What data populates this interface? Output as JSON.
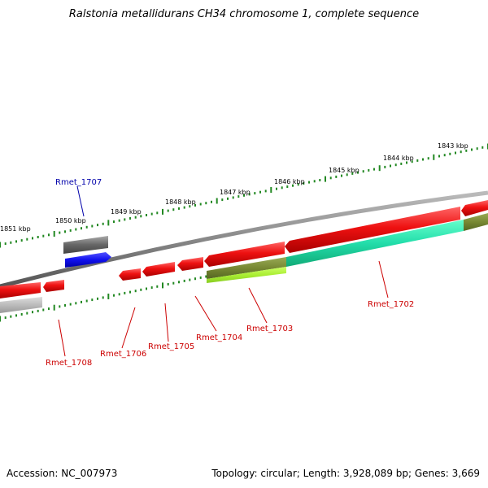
{
  "title": "Ralstonia metallidurans CH34 chromosome 1, complete sequence",
  "footer": {
    "accession": "Accession: NC_007973",
    "summary": "Topology: circular; Length: 3,928,089 bp; Genes: 3,669"
  },
  "scale_labels": [
    "1851 kbp",
    "1850 kbp",
    "1849 kbp",
    "1848 kbp",
    "1847 kbp",
    "1846 kbp",
    "1845 kbp",
    "1844 kbp",
    "1843 kbp"
  ],
  "gene_labels": [
    {
      "text": "Rmet_1707",
      "color": "#0000aa"
    },
    {
      "text": "Rmet_1708",
      "color": "#cc0000"
    },
    {
      "text": "Rmet_1706",
      "color": "#cc0000"
    },
    {
      "text": "Rmet_1705",
      "color": "#cc0000"
    },
    {
      "text": "Rmet_1704",
      "color": "#cc0000"
    },
    {
      "text": "Rmet_1703",
      "color": "#cc0000"
    },
    {
      "text": "Rmet_1702",
      "color": "#cc0000"
    }
  ],
  "colors": {
    "forward_gene": "#ee1111",
    "blue_gene": "#1111ee",
    "gray_gene": "#777777",
    "backbone": "#888888",
    "tick": "#228822",
    "teal_feature": "#22ddaa",
    "olive_feature": "#778833",
    "lime_feature": "#aaee33"
  }
}
